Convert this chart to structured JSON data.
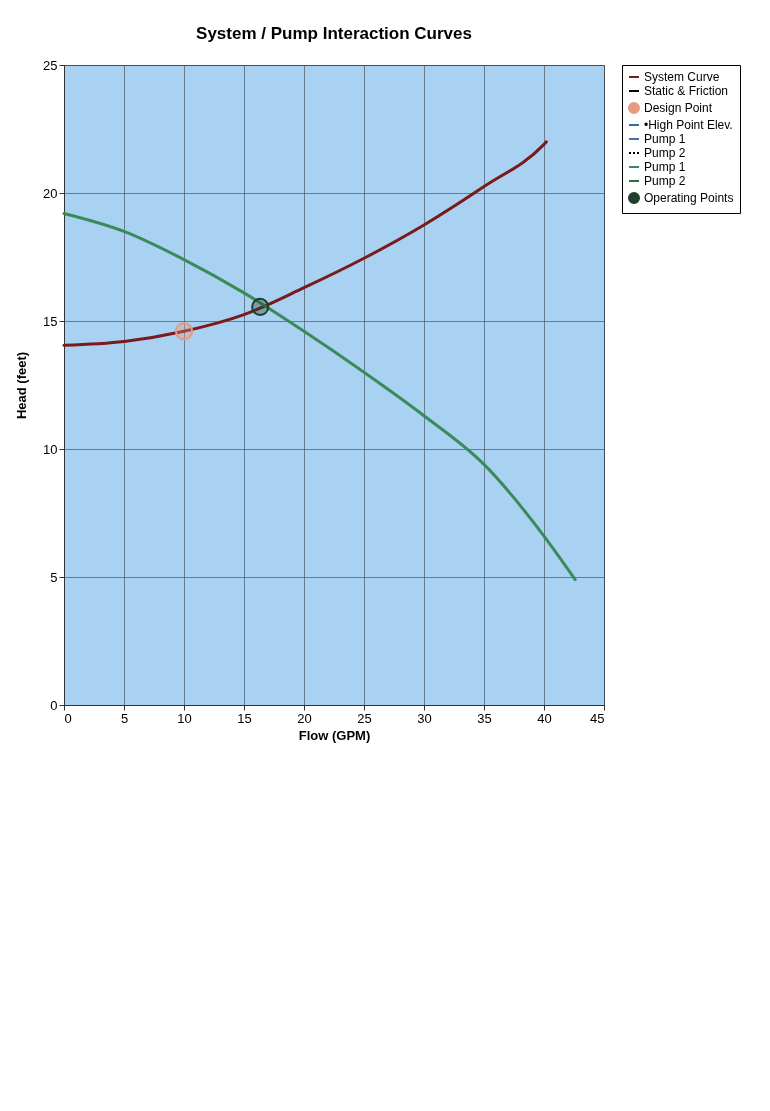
{
  "chart_data": {
    "type": "line",
    "title": "System / Pump Interaction Curves",
    "xlabel": "Flow (GPM)",
    "ylabel": "Head (feet)",
    "xlim": [
      0,
      45
    ],
    "xticks": [
      0,
      5,
      10,
      15,
      20,
      25,
      30,
      35,
      40,
      45
    ],
    "ylim": [
      0,
      25
    ],
    "yticks": [
      0,
      5,
      10,
      15,
      20,
      25
    ],
    "grid": true,
    "legend": "right",
    "series": [
      {
        "name": "System Curve",
        "color": "#7a1a1a",
        "x": [
          0,
          5,
          10,
          15,
          20,
          25,
          30,
          35,
          40,
          40.2
        ],
        "values": [
          14.05,
          14.2,
          14.6,
          15.25,
          16.3,
          17.45,
          18.75,
          20.25,
          21.9,
          22.0
        ]
      },
      {
        "name": "Static & Friction",
        "color": "#000000"
      },
      {
        "name": "Design Point",
        "type": "scatter",
        "marker": "circle",
        "color": "#e89a80",
        "x": [
          10
        ],
        "values": [
          14.6
        ]
      },
      {
        "name": "•High Point Elev.",
        "color": "#2f6f9f"
      },
      {
        "name": "Pump 1",
        "color": "#4a6fa0"
      },
      {
        "name": "Pump 2",
        "color": "#000000",
        "line_style": "dotted"
      },
      {
        "name": "Pump 1",
        "color": "#3a8a5a",
        "x": [
          0,
          5,
          10,
          15,
          20,
          25,
          30,
          35,
          40,
          42.6
        ],
        "values": [
          19.2,
          18.5,
          17.4,
          16.1,
          14.6,
          13.0,
          11.3,
          9.4,
          6.6,
          4.9
        ]
      },
      {
        "name": "Pump 2",
        "color": "#2e6b3e"
      },
      {
        "name": "Operating Points",
        "type": "scatter",
        "marker": "circle",
        "color": "#1f3f2a",
        "x": [
          16.35
        ],
        "values": [
          15.55
        ]
      }
    ]
  }
}
